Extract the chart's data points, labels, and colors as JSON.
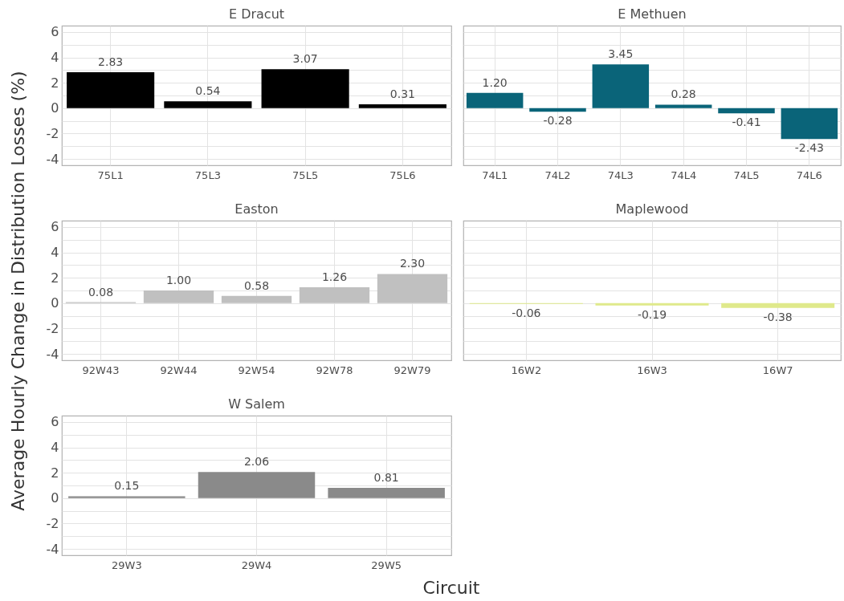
{
  "chart_data": [
    {
      "type": "bar",
      "title": "E Dracut",
      "ylabel": "Average Hourly Change in Distribution Losses (%)",
      "categories": [
        "75L1",
        "75L3",
        "75L5",
        "75L6"
      ],
      "values": [
        2.83,
        0.54,
        3.07,
        0.31
      ],
      "value_labels": [
        "2.83",
        "0.54",
        "3.07",
        "0.31"
      ],
      "color": "#000000",
      "ylim": [
        -4.5,
        6.5
      ],
      "yticks": [
        -4,
        {
          "value": -3,
          "label": null
        },
        -2,
        {
          "value": -1,
          "label": null
        },
        0,
        {
          "value": 1,
          "label": null
        },
        2,
        {
          "value": 3,
          "label": null
        },
        4,
        {
          "value": 5,
          "label": null
        },
        6
      ],
      "grid": true
    },
    {
      "type": "bar",
      "title": "E Methuen",
      "categories": [
        "74L1",
        "74L2",
        "74L3",
        "74L4",
        "74L5",
        "74L6"
      ],
      "values": [
        1.2,
        -0.28,
        3.45,
        0.28,
        -0.41,
        -2.43
      ],
      "value_labels": [
        "1.20",
        "-0.28",
        "3.45",
        "0.28",
        "-0.41",
        "-2.43"
      ],
      "color": "#0a6479",
      "ylim": [
        -4.5,
        6.5
      ],
      "yticks": [
        -4,
        {
          "value": -3,
          "label": null
        },
        -2,
        {
          "value": -1,
          "label": null
        },
        0,
        {
          "value": 1,
          "label": null
        },
        2,
        {
          "value": 3,
          "label": null
        },
        4,
        {
          "value": 5,
          "label": null
        },
        6
      ],
      "grid": true,
      "tick_labels": "x"
    },
    {
      "type": "bar",
      "title": "Easton",
      "categories": [
        "92W43",
        "92W44",
        "92W54",
        "92W78",
        "92W79"
      ],
      "values": [
        0.08,
        1.0,
        0.58,
        1.26,
        2.3
      ],
      "value_labels": [
        "0.08",
        "1.00",
        "0.58",
        "1.26",
        "2.30"
      ],
      "color": "#c0c0c0",
      "ylim": [
        -4.5,
        6.5
      ],
      "yticks": [
        -4,
        {
          "value": -3,
          "label": null
        },
        -2,
        {
          "value": -1,
          "label": null
        },
        0,
        {
          "value": 1,
          "label": null
        },
        2,
        {
          "value": 3,
          "label": null
        },
        4,
        {
          "value": 5,
          "label": null
        },
        6
      ],
      "grid": true
    },
    {
      "type": "bar",
      "title": "Maplewood",
      "categories": [
        "16W2",
        "16W3",
        "16W7"
      ],
      "values": [
        -0.06,
        -0.19,
        -0.38
      ],
      "value_labels": [
        "-0.06",
        "-0.19",
        "-0.38"
      ],
      "color": "#dfe98b",
      "ylim": [
        -4.5,
        6.5
      ],
      "yticks": [
        -4,
        {
          "value": -3,
          "label": null
        },
        -2,
        {
          "value": -1,
          "label": null
        },
        0,
        {
          "value": 1,
          "label": null
        },
        2,
        {
          "value": 3,
          "label": null
        },
        4,
        {
          "value": 5,
          "label": null
        },
        6
      ],
      "grid": true,
      "tick_labels": "x"
    },
    {
      "type": "bar",
      "title": "W Salem",
      "xlabel": "Circuit",
      "categories": [
        "29W3",
        "29W4",
        "29W5"
      ],
      "values": [
        0.15,
        2.06,
        0.81
      ],
      "value_labels": [
        "0.15",
        "2.06",
        "0.81"
      ],
      "color": "#8a8a8a",
      "ylim": [
        -4.5,
        6.5
      ],
      "yticks": [
        -4,
        {
          "value": -3,
          "label": null
        },
        -2,
        {
          "value": -1,
          "label": null
        },
        0,
        {
          "value": 1,
          "label": null
        },
        2,
        {
          "value": 3,
          "label": null
        },
        4,
        {
          "value": 5,
          "label": null
        },
        6
      ],
      "grid": true
    }
  ]
}
